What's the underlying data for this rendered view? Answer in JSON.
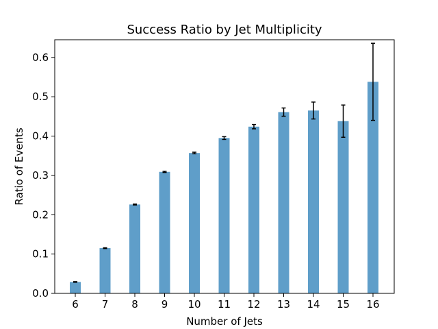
{
  "chart_data": {
    "type": "bar",
    "title": "Success Ratio by Jet Multiplicity",
    "xlabel": "Number of Jets",
    "ylabel": "Ratio of Events",
    "categories": [
      "6",
      "7",
      "8",
      "9",
      "10",
      "11",
      "12",
      "13",
      "14",
      "15",
      "16"
    ],
    "values": [
      0.029,
      0.115,
      0.226,
      0.309,
      0.357,
      0.395,
      0.424,
      0.461,
      0.465,
      0.438,
      0.538
    ],
    "errors": [
      0.0008,
      0.001,
      0.0012,
      0.0015,
      0.002,
      0.0035,
      0.0055,
      0.0105,
      0.0215,
      0.041,
      0.098
    ],
    "ylim": [
      0,
      0.645
    ],
    "yticks": [
      "0.0",
      "0.1",
      "0.2",
      "0.3",
      "0.4",
      "0.5",
      "0.6"
    ],
    "grid": false,
    "bar_color": "#5f9ec9",
    "error_color": "#000000"
  }
}
